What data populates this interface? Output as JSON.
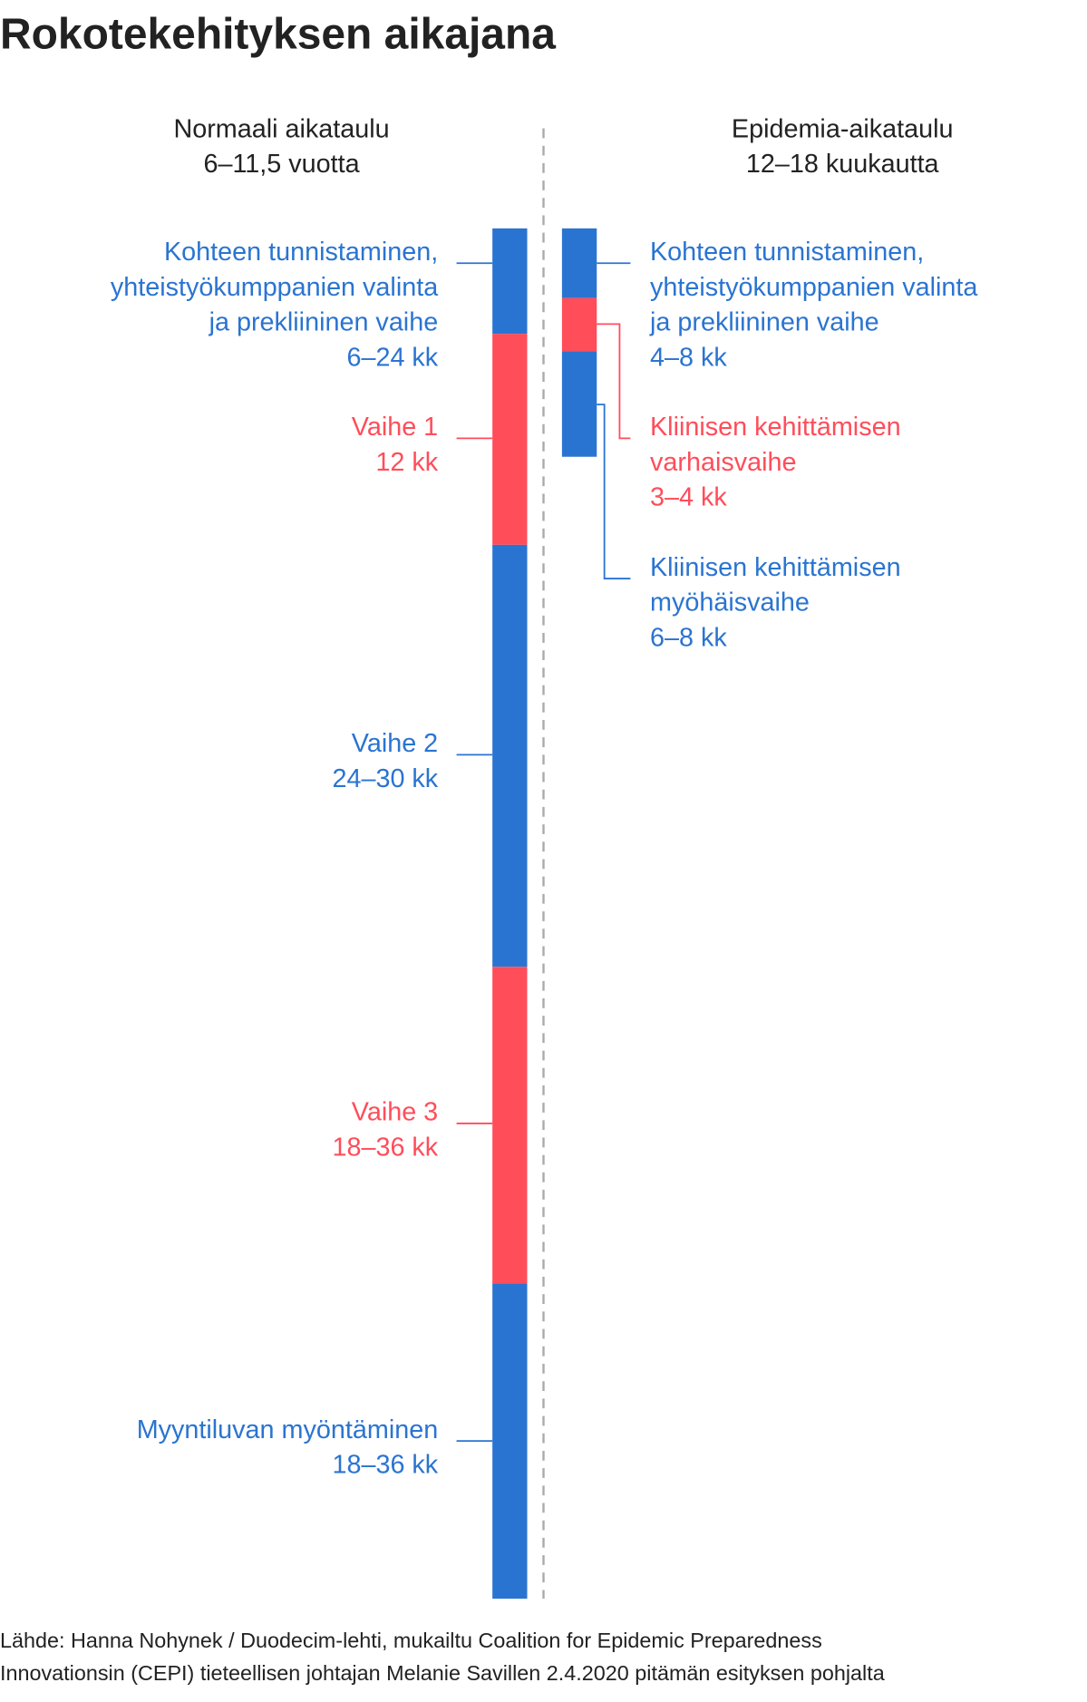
{
  "title": "Rokotekehityksen aikajana",
  "columns": [
    {
      "heading": [
        "Normaali aikataulu",
        "6–11,5 vuotta"
      ],
      "phases": [
        {
          "label": [
            "Kohteen tunnistaminen,",
            "yhteistyökumppanien valinta",
            "ja prekliininen vaihe"
          ],
          "duration": "6–24 kk"
        },
        {
          "label": [
            "Vaihe 1"
          ],
          "duration": "12 kk"
        },
        {
          "label": [
            "Vaihe 2"
          ],
          "duration": "24–30 kk"
        },
        {
          "label": [
            "Vaihe 3"
          ],
          "duration": "18–36 kk"
        },
        {
          "label": [
            "Myyntiluvan myöntäminen"
          ],
          "duration": "18–36 kk"
        }
      ]
    },
    {
      "heading": [
        "Epidemia-aikataulu",
        "12–18 kuukautta"
      ],
      "phases": [
        {
          "label": [
            "Kohteen tunnistaminen,",
            "yhteistyökumppanien valinta",
            "ja prekliininen vaihe"
          ],
          "duration": "4–8 kk"
        },
        {
          "label": [
            "Kliinisen kehittämisen",
            "varhaisvaihe"
          ],
          "duration": "3–4 kk"
        },
        {
          "label": [
            "Kliinisen kehittämisen",
            "myöhäisvaihe"
          ],
          "duration": "6–8 kk"
        }
      ]
    }
  ],
  "source": [
    "Lähde: Hanna Nohynek / Duodecim-lehti, mukailtu Coalition for Epidemic Preparedness",
    "Innovationsin (CEPI) tieteellisen johtajan Melanie Savillen 2.4.2020 pitämän esityksen pohjalta"
  ]
}
